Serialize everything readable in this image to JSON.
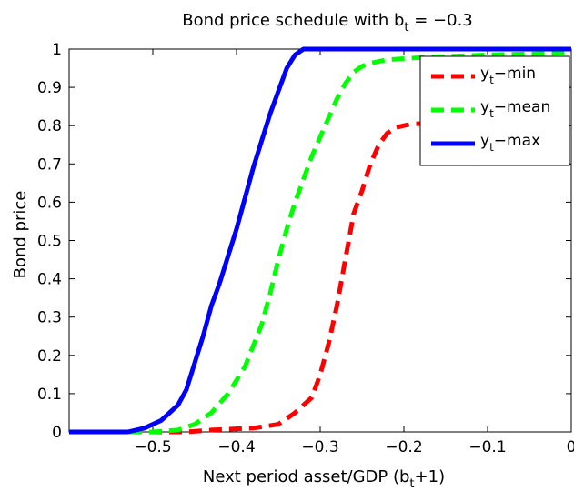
{
  "chart_data": {
    "type": "line",
    "title": {
      "main": "Bond price schedule with b",
      "sub": "t",
      "tail": " = −0.3"
    },
    "xlabel": {
      "main": "Next period asset/GDP (b",
      "sub": "t",
      "tail": "+1)"
    },
    "ylabel": "Bond price",
    "xlim": [
      -0.6,
      0
    ],
    "ylim": [
      0,
      1
    ],
    "xticks": [
      -0.5,
      -0.4,
      -0.3,
      -0.2,
      -0.1,
      0
    ],
    "xtick_labels": [
      "−0.5",
      "−0.4",
      "−0.3",
      "−0.2",
      "−0.1",
      "0"
    ],
    "yticks": [
      0,
      0.1,
      0.2,
      0.3,
      0.4,
      0.5,
      0.6,
      0.7,
      0.8,
      0.9,
      1
    ],
    "ytick_labels": [
      "0",
      "0.1",
      "0.2",
      "0.3",
      "0.4",
      "0.5",
      "0.6",
      "0.7",
      "0.8",
      "0.9",
      "1"
    ],
    "grid": false,
    "legend_position": "top-right",
    "series": [
      {
        "name": "y_t-min",
        "legend_main": "y",
        "legend_sub": "t",
        "legend_tail": "−min",
        "color": "#ff0000",
        "style": "dashed",
        "x": [
          -0.6,
          -0.46,
          -0.43,
          -0.38,
          -0.35,
          -0.33,
          -0.31,
          -0.3,
          -0.29,
          -0.28,
          -0.27,
          -0.26,
          -0.25,
          -0.24,
          -0.23,
          -0.22,
          -0.21,
          -0.2,
          -0.19,
          -0.18,
          -0.1,
          0
        ],
        "y": [
          0,
          0,
          0.005,
          0.01,
          0.02,
          0.05,
          0.09,
          0.15,
          0.23,
          0.33,
          0.45,
          0.57,
          0.63,
          0.7,
          0.75,
          0.78,
          0.795,
          0.8,
          0.805,
          0.805,
          0.805,
          0.805
        ]
      },
      {
        "name": "y_t-mean",
        "legend_main": "y",
        "legend_sub": "t",
        "legend_tail": "−mean",
        "color": "#00ff00",
        "style": "dashed",
        "x": [
          -0.6,
          -0.5,
          -0.47,
          -0.45,
          -0.43,
          -0.41,
          -0.39,
          -0.37,
          -0.36,
          -0.35,
          -0.34,
          -0.33,
          -0.32,
          -0.31,
          -0.3,
          -0.29,
          -0.28,
          -0.27,
          -0.26,
          -0.25,
          -0.24,
          -0.23,
          -0.22,
          -0.2,
          -0.18,
          -0.1,
          0
        ],
        "y": [
          0,
          0,
          0.005,
          0.02,
          0.05,
          0.1,
          0.17,
          0.28,
          0.36,
          0.45,
          0.53,
          0.6,
          0.66,
          0.72,
          0.77,
          0.82,
          0.87,
          0.91,
          0.94,
          0.955,
          0.963,
          0.968,
          0.972,
          0.975,
          0.978,
          0.985,
          0.99
        ]
      },
      {
        "name": "y_t-max",
        "legend_main": "y",
        "legend_sub": "t",
        "legend_tail": "−max",
        "color": "#0000ff",
        "style": "solid",
        "x": [
          -0.6,
          -0.53,
          -0.51,
          -0.49,
          -0.47,
          -0.46,
          -0.45,
          -0.44,
          -0.43,
          -0.42,
          -0.41,
          -0.4,
          -0.39,
          -0.38,
          -0.37,
          -0.36,
          -0.35,
          -0.34,
          -0.33,
          -0.32,
          0
        ],
        "y": [
          0,
          0,
          0.01,
          0.03,
          0.07,
          0.11,
          0.18,
          0.25,
          0.33,
          0.39,
          0.46,
          0.53,
          0.61,
          0.69,
          0.76,
          0.83,
          0.89,
          0.95,
          0.985,
          1,
          1
        ]
      }
    ]
  }
}
